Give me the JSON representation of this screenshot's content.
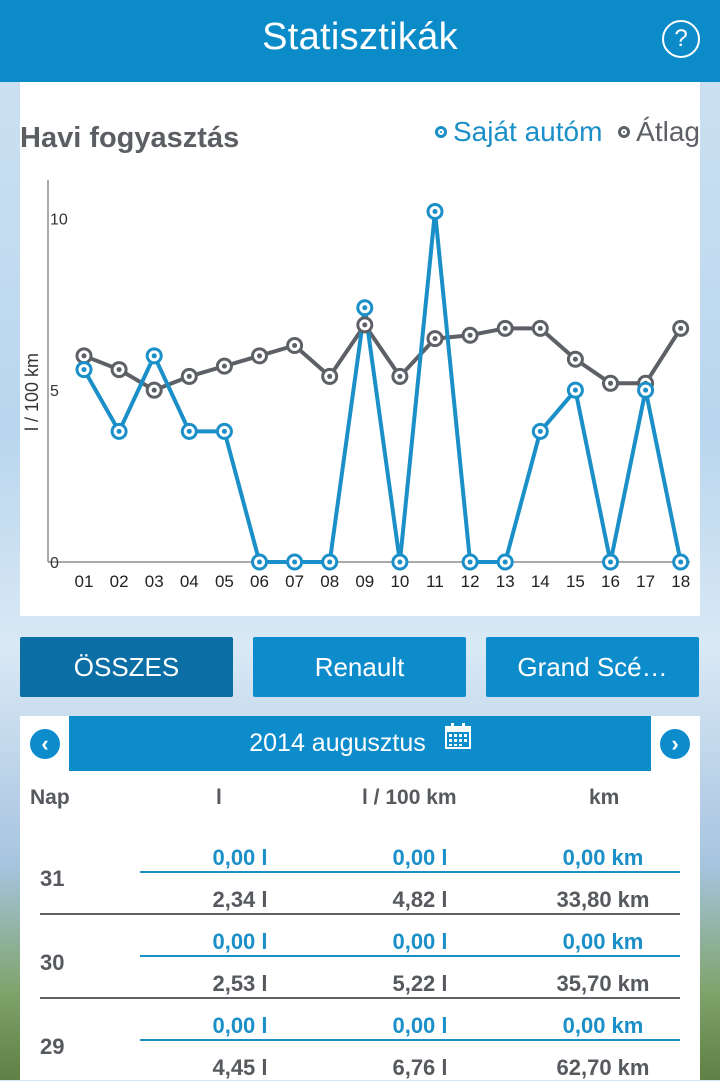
{
  "header": {
    "title": "Statisztikák",
    "help_label": "?"
  },
  "chart": {
    "title": "Havi fogyasztás",
    "legend_own": "Saját autóm",
    "legend_avg": "Átlag",
    "color_own": "#1b8fc8",
    "color_avg": "#5d6066"
  },
  "chart_data": {
    "type": "line",
    "ylabel": "l / 100 km",
    "ylim": [
      0,
      11
    ],
    "yticks": [
      "0",
      "5",
      "10"
    ],
    "categories": [
      "01",
      "02",
      "03",
      "04",
      "05",
      "06",
      "07",
      "08",
      "09",
      "10",
      "11",
      "12",
      "13",
      "14",
      "15",
      "16",
      "17",
      "18"
    ],
    "series": [
      {
        "name": "Saját autóm",
        "values": [
          5.6,
          3.8,
          6.0,
          3.8,
          3.8,
          0,
          0,
          0,
          7.4,
          0,
          10.2,
          0,
          0,
          3.8,
          5.0,
          0,
          5.0,
          0
        ]
      },
      {
        "name": "Átlag",
        "values": [
          6.0,
          5.6,
          5.0,
          5.4,
          5.7,
          6.0,
          6.3,
          5.4,
          6.9,
          5.4,
          6.5,
          6.6,
          6.8,
          6.8,
          5.9,
          5.2,
          5.2,
          6.8
        ]
      }
    ]
  },
  "filters": {
    "all": "ÖSSZES",
    "brand": "Renault",
    "model": "Grand Scé…"
  },
  "month": {
    "label": "2014 augusztus",
    "prev": "‹",
    "next": "›",
    "calendar_icon": "calendar-icon"
  },
  "columns": {
    "day": "Nap",
    "liters": "l",
    "per100": "l / 100 km",
    "km": "km"
  },
  "rows": [
    {
      "day": "31",
      "own": {
        "l": "0,00 l",
        "p": "0,00 l",
        "km": "0,00 km"
      },
      "avg": {
        "l": "2,34 l",
        "p": "4,82 l",
        "km": "33,80 km"
      }
    },
    {
      "day": "30",
      "own": {
        "l": "0,00 l",
        "p": "0,00 l",
        "km": "0,00 km"
      },
      "avg": {
        "l": "2,53 l",
        "p": "5,22 l",
        "km": "35,70 km"
      }
    },
    {
      "day": "29",
      "own": {
        "l": "0,00 l",
        "p": "0,00 l",
        "km": "0,00 km"
      },
      "avg": {
        "l": "4,45 l",
        "p": "6,76 l",
        "km": "62,70 km"
      }
    }
  ]
}
